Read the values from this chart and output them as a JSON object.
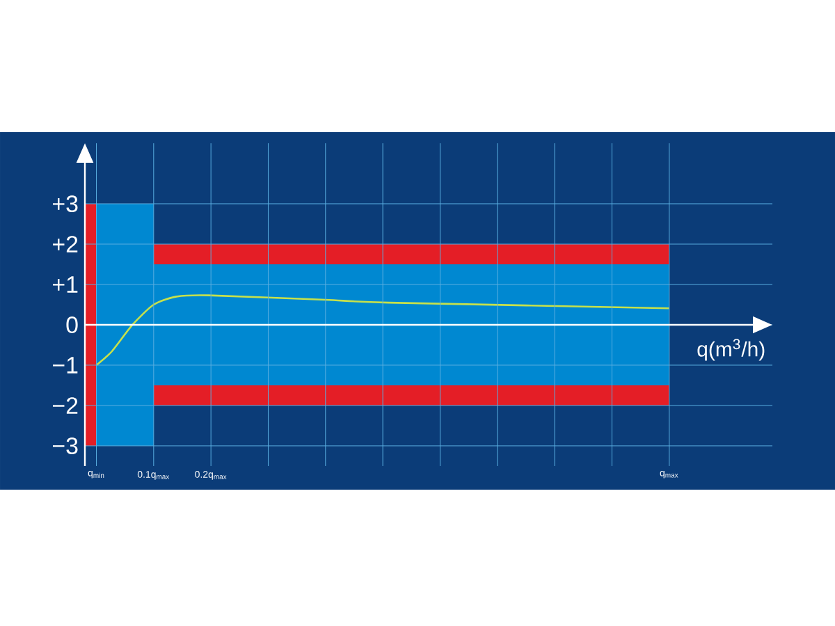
{
  "chart_data": {
    "type": "area",
    "xlabel": "q(m$^{3}$/h)",
    "xlim": [
      -0.02,
      1.18
    ],
    "ylim": [
      -3.5,
      4.5
    ],
    "xticks": [
      {
        "value": 0,
        "label": "q$_{min}$"
      },
      {
        "value": 0.1,
        "label": "0.1q$_{max}$"
      },
      {
        "value": 0.2,
        "label": "0.2q$_{max}$"
      },
      {
        "value": 0.3,
        "label": null
      },
      {
        "value": 0.4,
        "label": null
      },
      {
        "value": 0.5,
        "label": null
      },
      {
        "value": 0.6,
        "label": null
      },
      {
        "value": 0.7,
        "label": null
      },
      {
        "value": 0.8,
        "label": null
      },
      {
        "value": 0.9,
        "label": null
      },
      {
        "value": 1,
        "label": "q$_{max}$"
      }
    ],
    "yticks": [
      {
        "value": -3,
        "label": "−3"
      },
      {
        "value": -2,
        "label": "−2"
      },
      {
        "value": -1,
        "label": "−1"
      },
      0,
      {
        "value": 1,
        "label": "+1"
      },
      {
        "value": 2,
        "label": "+2"
      },
      {
        "value": 3,
        "label": "+3"
      }
    ],
    "grid": true,
    "marker": "none",
    "line_style": "solid",
    "series": [
      {
        "color": "#e41e26",
        "x": [
          0.1,
          1
        ],
        "values": [
          2,
          2
        ]
      },
      {
        "color": "#e41e26",
        "x": [
          0.1,
          1
        ],
        "values": [
          -2,
          -2
        ]
      },
      {
        "color": "#0088d1",
        "x": [
          0,
          0.1,
          0.1,
          1
        ],
        "values": [
          3,
          3,
          1.5,
          1.5
        ]
      },
      {
        "color": "#0088d1",
        "x": [
          0,
          0.1,
          0.1,
          1
        ],
        "values": [
          -3,
          -3,
          -1.5,
          -1.5
        ]
      },
      {
        "color": "#e41e26",
        "x": [
          -0.02,
          0
        ],
        "values": [
          3,
          3
        ]
      },
      {
        "color": "#e41e26",
        "x": [
          -0.02,
          0
        ],
        "values": [
          -3,
          -3
        ]
      },
      {
        "type": "line",
        "color": "#c6e14b",
        "x": [
          0,
          0.027,
          0.063,
          0.1,
          0.14,
          0.196,
          0.4,
          0.51,
          1
        ],
        "values": [
          -1,
          -0.66,
          0,
          0.5,
          0.7,
          0.73,
          0.62,
          0.55,
          0.41
        ]
      }
    ]
  }
}
